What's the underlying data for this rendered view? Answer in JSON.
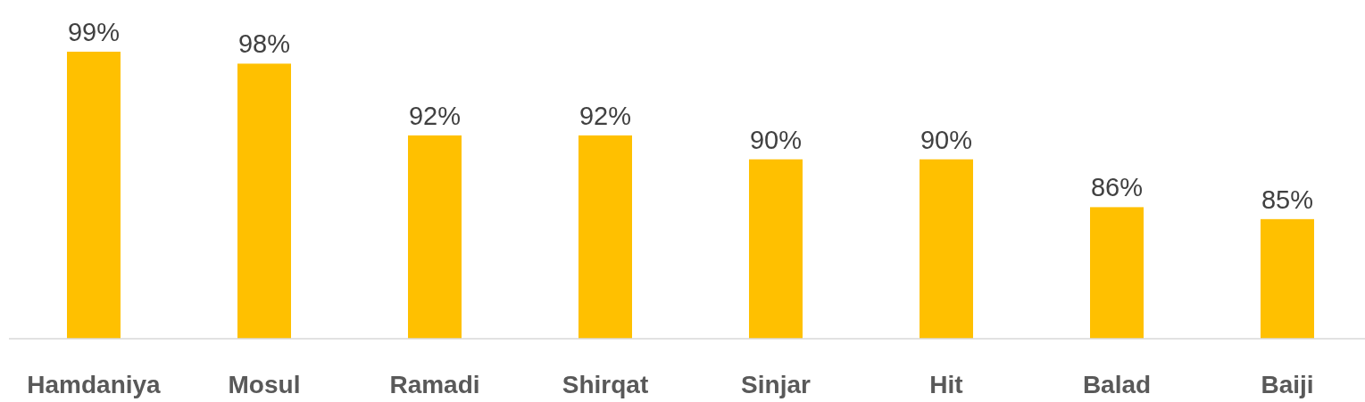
{
  "chart_data": {
    "type": "bar",
    "categories": [
      "Hamdaniya",
      "Mosul",
      "Ramadi",
      "Shirqat",
      "Sinjar",
      "Hit",
      "Balad",
      "Baiji"
    ],
    "values": [
      99,
      98,
      92,
      92,
      90,
      90,
      86,
      85
    ],
    "value_labels": [
      "99%",
      "98%",
      "92%",
      "92%",
      "90%",
      "90%",
      "86%",
      "85%"
    ],
    "color": "#ffc000",
    "ylim": [
      75,
      99
    ],
    "tick_labels": "x"
  }
}
